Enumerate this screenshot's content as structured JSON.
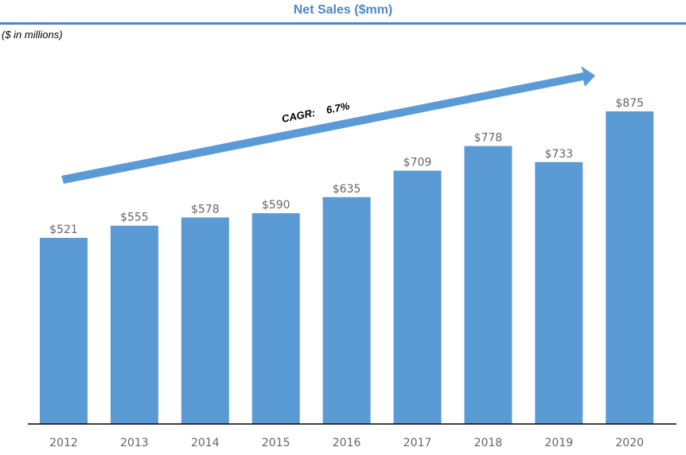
{
  "title": "Net Sales ($mm)",
  "subtitle": "($ in millions)",
  "colors": {
    "bar": "#5b9bd5",
    "title": "#4f86c6",
    "arrow": "#5b9bd5"
  },
  "chart_data": {
    "type": "bar",
    "title": "Net Sales ($mm)",
    "categories": [
      "2012",
      "2013",
      "2014",
      "2015",
      "2016",
      "2017",
      "2018",
      "2019",
      "2020"
    ],
    "values": [
      521,
      555,
      578,
      590,
      635,
      709,
      778,
      733,
      875
    ],
    "data_labels": [
      "$521",
      "$555",
      "$578",
      "$590",
      "$635",
      "$709",
      "$778",
      "$733",
      "$875"
    ],
    "ylim": [
      0,
      875
    ],
    "grid": false,
    "annotation": {
      "label": "CAGR:",
      "value": "6.7%"
    }
  }
}
